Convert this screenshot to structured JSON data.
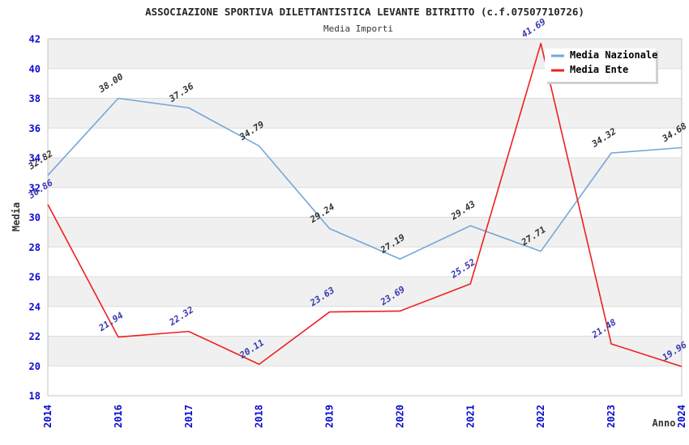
{
  "header": {
    "title": "ASSOCIAZIONE SPORTIVA DILETTANTISTICA LEVANTE BITRITTO (c.f.07507710726)",
    "subtitle": "Media Importi"
  },
  "chart_data": {
    "type": "line",
    "title": "ASSOCIAZIONE SPORTIVA DILETTANTISTICA LEVANTE BITRITTO (c.f.07507710726)",
    "subtitle": "Media Importi",
    "xlabel": "Anno",
    "ylabel": "Media",
    "categories": [
      "2014",
      "2016",
      "2017",
      "2018",
      "2019",
      "2020",
      "2021",
      "2022",
      "2023",
      "2024"
    ],
    "series": [
      {
        "name": "Media Nazionale",
        "color": "#74a7d9",
        "label_color": "#333333",
        "values": [
          32.82,
          38.0,
          37.36,
          34.79,
          29.24,
          27.19,
          29.43,
          27.71,
          34.32,
          34.68
        ],
        "labels": [
          "32.82",
          "38.00",
          "37.36",
          "34.79",
          "29.24",
          "27.19",
          "29.43",
          "27.71",
          "34.32",
          "34.68"
        ]
      },
      {
        "name": "Media Ente",
        "color": "#ee1f1f",
        "label_color": "#3737b3",
        "values": [
          30.86,
          21.94,
          22.32,
          20.11,
          23.63,
          23.69,
          25.52,
          41.69,
          21.48,
          19.96
        ],
        "labels": [
          "30.86",
          "21.94",
          "22.32",
          "20.11",
          "23.63",
          "23.69",
          "25.52",
          "41.69",
          "21.48",
          "19.96"
        ]
      }
    ],
    "ylim": [
      18,
      42
    ],
    "ytick_step": 2,
    "yticks": [
      "18",
      "20",
      "22",
      "24",
      "26",
      "28",
      "30",
      "32",
      "34",
      "36",
      "38",
      "40",
      "42"
    ],
    "grid": "horizontal-bands",
    "legend_position": "top-right",
    "colors": {
      "tick_label": "#0a0ace",
      "band_gray": "#f0f0f0",
      "band_white": "#ffffff",
      "grid_line": "#dcdcdc",
      "plot_border": "#c4c4c4",
      "title_text": "#262626",
      "axis_title_text": "#333333",
      "legend_text": "#000000",
      "legend_bg": "#ffffff",
      "legend_shadow": "#d0d0d0"
    }
  }
}
